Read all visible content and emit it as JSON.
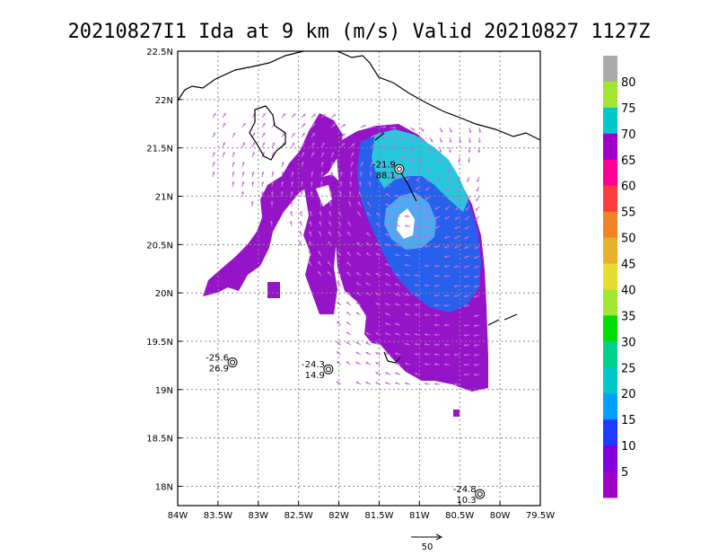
{
  "chart_data": {
    "type": "vector-map",
    "title": "20210827I1 Ida at 9 km (m/s) Valid 20210827 1127Z",
    "xlim": [
      -84,
      -79.5
    ],
    "ylim": [
      17.8,
      22.5
    ],
    "x_ticks": [
      {
        "value": -84,
        "label": "84W"
      },
      {
        "value": -83.5,
        "label": "83.5W"
      },
      {
        "value": -83,
        "label": "83W"
      },
      {
        "value": -82.5,
        "label": "82.5W"
      },
      {
        "value": -82,
        "label": "82W"
      },
      {
        "value": -81.5,
        "label": "81.5W"
      },
      {
        "value": -81,
        "label": "81W"
      },
      {
        "value": -80.5,
        "label": "80.5W"
      },
      {
        "value": -80,
        "label": "80W"
      },
      {
        "value": -79.5,
        "label": "79.5W"
      }
    ],
    "y_ticks": [
      {
        "value": 22.5,
        "label": "22.5N"
      },
      {
        "value": 22,
        "label": "22N"
      },
      {
        "value": 21.5,
        "label": "21.5N"
      },
      {
        "value": 21,
        "label": "21N"
      },
      {
        "value": 20.5,
        "label": "20.5N"
      },
      {
        "value": 20,
        "label": "20N"
      },
      {
        "value": 19.5,
        "label": "19.5N"
      },
      {
        "value": 19,
        "label": "19N"
      },
      {
        "value": 18.5,
        "label": "18.5N"
      },
      {
        "value": 18,
        "label": "18N"
      }
    ],
    "grid": true,
    "colorbar": {
      "labels": [
        "5",
        "10",
        "15",
        "20",
        "25",
        "30",
        "35",
        "40",
        "45",
        "50",
        "55",
        "60",
        "65",
        "70",
        "75",
        "80"
      ],
      "colors": [
        "#a000c8",
        "#8200dc",
        "#1e3cff",
        "#00a0ff",
        "#00c8c8",
        "#00d28c",
        "#00dc00",
        "#a0e632",
        "#e6dc32",
        "#e6af2d",
        "#f08228",
        "#fa3c3c",
        "#ff0096",
        "#a000c8",
        "#00c8c8",
        "#a0e632",
        "#aaaaaa"
      ]
    },
    "reference_vector": {
      "label": "50",
      "value": 50
    },
    "centers": [
      {
        "lon": -81.25,
        "lat": 21.28,
        "label_top": "-21.9",
        "label_bottom": "88.1"
      },
      {
        "lon": -83.32,
        "lat": 19.28,
        "label_top": "-25.6",
        "label_bottom": "26.9"
      },
      {
        "lon": -82.13,
        "lat": 19.21,
        "label_top": "-24.3",
        "label_bottom": "14.9"
      },
      {
        "lon": -80.25,
        "lat": 17.92,
        "label_top": "-24.8",
        "label_bottom": "10.3"
      }
    ]
  }
}
